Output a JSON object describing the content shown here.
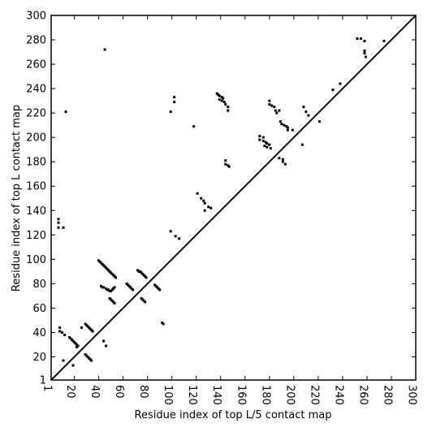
{
  "chart_data": {
    "type": "scatter",
    "title": "",
    "xlabel": "Residue index of top L/5 contact map",
    "ylabel": "Residue index of top L contact map",
    "xlim": [
      1,
      300
    ],
    "ylim": [
      1,
      300
    ],
    "xticks": [
      1,
      20,
      40,
      60,
      80,
      100,
      120,
      140,
      160,
      180,
      200,
      220,
      240,
      260,
      280,
      300
    ],
    "yticks": [
      1,
      20,
      40,
      60,
      80,
      100,
      120,
      140,
      160,
      180,
      200,
      220,
      240,
      260,
      280,
      300
    ],
    "grid": false,
    "legend": "none",
    "diagonal": {
      "from": [
        1,
        1
      ],
      "to": [
        300,
        300
      ]
    },
    "marker_color": "#000000",
    "series": [
      {
        "name": "",
        "points": [
          [
            40,
            99
          ],
          [
            41,
            98
          ],
          [
            42,
            97
          ],
          [
            43,
            96
          ],
          [
            44,
            95
          ],
          [
            45,
            94
          ],
          [
            46,
            93
          ],
          [
            47,
            92
          ],
          [
            48,
            91
          ],
          [
            49,
            90
          ],
          [
            50,
            89
          ],
          [
            51,
            88
          ],
          [
            52,
            87
          ],
          [
            53,
            86
          ],
          [
            54,
            85
          ],
          [
            42,
            78
          ],
          [
            43,
            77
          ],
          [
            44,
            77
          ],
          [
            46,
            76
          ],
          [
            47,
            75
          ],
          [
            48,
            75
          ],
          [
            49,
            74
          ],
          [
            50,
            74
          ],
          [
            51,
            75
          ],
          [
            52,
            76
          ],
          [
            53,
            77
          ],
          [
            49,
            68
          ],
          [
            50,
            67
          ],
          [
            51,
            66
          ],
          [
            52,
            65
          ],
          [
            53,
            64
          ],
          [
            72,
            91
          ],
          [
            73,
            90
          ],
          [
            74,
            90
          ],
          [
            75,
            89
          ],
          [
            76,
            88
          ],
          [
            77,
            87
          ],
          [
            78,
            86
          ],
          [
            79,
            85
          ],
          [
            63,
            80
          ],
          [
            64,
            79
          ],
          [
            65,
            78
          ],
          [
            66,
            77
          ],
          [
            67,
            76
          ],
          [
            68,
            75
          ],
          [
            75,
            68
          ],
          [
            76,
            67
          ],
          [
            77,
            66
          ],
          [
            78,
            65
          ],
          [
            86,
            79
          ],
          [
            87,
            78
          ],
          [
            88,
            77
          ],
          [
            89,
            76
          ],
          [
            90,
            75
          ],
          [
            92,
            48
          ],
          [
            93,
            47
          ],
          [
            8,
            44
          ],
          [
            8,
            41
          ],
          [
            10,
            40
          ],
          [
            12,
            38
          ],
          [
            16,
            36
          ],
          [
            17,
            35
          ],
          [
            18,
            34
          ],
          [
            19,
            33
          ],
          [
            20,
            32
          ],
          [
            21,
            31
          ],
          [
            22,
            30
          ],
          [
            23,
            29
          ],
          [
            22,
            28
          ],
          [
            29,
            47
          ],
          [
            30,
            46
          ],
          [
            31,
            45
          ],
          [
            32,
            44
          ],
          [
            33,
            43
          ],
          [
            34,
            42
          ],
          [
            35,
            41
          ],
          [
            29,
            22
          ],
          [
            30,
            21
          ],
          [
            31,
            20
          ],
          [
            32,
            19
          ],
          [
            33,
            18
          ],
          [
            34,
            17
          ],
          [
            7,
            133
          ],
          [
            7,
            130
          ],
          [
            7,
            126
          ],
          [
            11,
            126
          ],
          [
            13,
            221
          ],
          [
            45,
            272
          ],
          [
            19,
            13
          ],
          [
            11,
            17
          ],
          [
            26,
            44
          ],
          [
            46,
            29
          ],
          [
            44,
            33
          ],
          [
            99,
            123
          ],
          [
            103,
            119
          ],
          [
            106,
            117
          ],
          [
            99,
            221
          ],
          [
            102,
            233
          ],
          [
            102,
            229
          ],
          [
            118,
            209
          ],
          [
            121,
            154
          ],
          [
            124,
            150
          ],
          [
            126,
            148
          ],
          [
            127,
            146
          ],
          [
            130,
            143
          ],
          [
            127,
            140
          ],
          [
            132,
            142
          ],
          [
            137,
            236
          ],
          [
            138,
            235
          ],
          [
            139,
            234
          ],
          [
            141,
            233
          ],
          [
            139,
            231
          ],
          [
            141,
            230
          ],
          [
            143,
            229
          ],
          [
            144,
            227
          ],
          [
            146,
            225
          ],
          [
            146,
            222
          ],
          [
            142,
            232
          ],
          [
            144,
            181
          ],
          [
            144,
            178
          ],
          [
            146,
            177
          ],
          [
            147,
            176
          ],
          [
            172,
            201
          ],
          [
            175,
            200
          ],
          [
            172,
            198
          ],
          [
            175,
            197
          ],
          [
            177,
            196
          ],
          [
            178,
            195
          ],
          [
            176,
            193
          ],
          [
            178,
            192
          ],
          [
            181,
            191
          ],
          [
            180,
            194
          ],
          [
            180,
            230
          ],
          [
            180,
            227
          ],
          [
            182,
            226
          ],
          [
            184,
            225
          ],
          [
            185,
            222
          ],
          [
            186,
            220
          ],
          [
            188,
            222
          ],
          [
            189,
            213
          ],
          [
            190,
            211
          ],
          [
            192,
            210
          ],
          [
            194,
            209
          ],
          [
            195,
            208
          ],
          [
            195,
            206
          ],
          [
            199,
            206
          ],
          [
            188,
            183
          ],
          [
            191,
            182
          ],
          [
            191,
            180
          ],
          [
            193,
            178
          ],
          [
            208,
            225
          ],
          [
            210,
            221
          ],
          [
            212,
            218
          ],
          [
            207,
            194
          ],
          [
            221,
            213
          ],
          [
            232,
            239
          ],
          [
            252,
            281
          ],
          [
            255,
            281
          ],
          [
            258,
            279
          ],
          [
            258,
            271
          ],
          [
            258,
            269
          ],
          [
            259,
            266
          ],
          [
            274,
            279
          ],
          [
            238,
            244
          ]
        ]
      }
    ]
  }
}
